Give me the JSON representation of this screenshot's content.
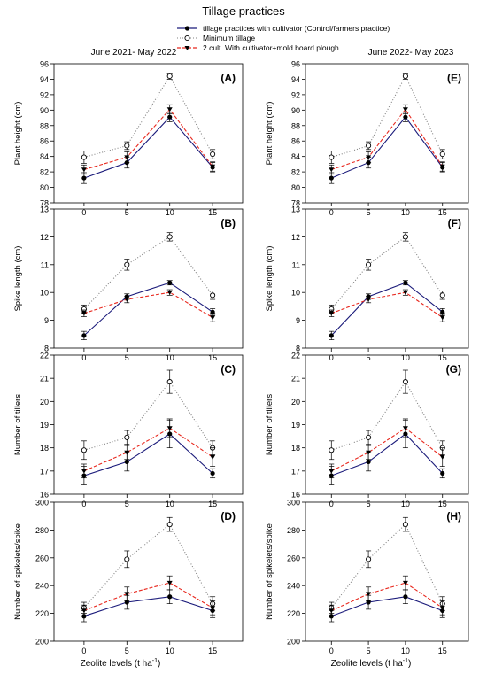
{
  "figure": {
    "title": "Tillage practices",
    "period_left": "June 2021- May 2022",
    "period_right": "June 2022- May 2023",
    "xlabel": "Zeolite levels (t ha",
    "xlabel_sup": "-1",
    "xlabel_end": ")"
  },
  "legend": {
    "items": [
      {
        "label": "tillage practices with  cultivator (Control/farmers practice)",
        "color": "#1a1a7a",
        "marker": "filled-circle",
        "dash": "solid"
      },
      {
        "label": "Minimum tillage",
        "color": "#808080",
        "marker": "open-circle",
        "dash": "dotted"
      },
      {
        "label": "2 cult. With cultivator+mold board plough",
        "color": "#e8281e",
        "marker": "filled-triangle-down",
        "dash": "dashed"
      }
    ]
  },
  "chart_data": [
    {
      "type": "line",
      "panel": "(A)",
      "period": "June 2021- May 2022",
      "ylabel": "Plant height (cm)",
      "xlabel": "Zeolite levels (t ha-1)",
      "x": [
        0,
        5,
        10,
        15
      ],
      "xticks": [
        0,
        5,
        10,
        15
      ],
      "xlim": [
        -3.5,
        18.5
      ],
      "ylim": [
        78,
        96
      ],
      "yticks": [
        78,
        80,
        82,
        84,
        86,
        88,
        90,
        92,
        94,
        96
      ],
      "series": [
        {
          "name": "tillage practices with  cultivator (Control/farmers practice)",
          "values": [
            81.2,
            83.2,
            89.1,
            82.6
          ],
          "errors": [
            0.7,
            0.7,
            0.6,
            0.6
          ]
        },
        {
          "name": "Minimum tillage",
          "values": [
            83.9,
            85.4,
            94.4,
            84.3
          ],
          "errors": [
            0.8,
            0.5,
            0.4,
            0.6
          ]
        },
        {
          "name": "2 cult. With cultivator+mold board plough",
          "values": [
            82.3,
            83.9,
            90.1,
            82.7
          ],
          "errors": [
            0.6,
            0.7,
            0.6,
            0.6
          ]
        }
      ]
    },
    {
      "type": "line",
      "panel": "(E)",
      "period": "June 2022- May 2023",
      "ylabel": "Plant height (cm)",
      "xlabel": "Zeolite levels (t ha-1)",
      "x": [
        0,
        5,
        10,
        15
      ],
      "xticks": [
        0,
        5,
        10,
        15
      ],
      "xlim": [
        -3.5,
        18.5
      ],
      "ylim": [
        78,
        96
      ],
      "yticks": [
        78,
        80,
        82,
        84,
        86,
        88,
        90,
        92,
        94,
        96
      ],
      "series": [
        {
          "name": "tillage practices with  cultivator (Control/farmers practice)",
          "values": [
            81.2,
            83.2,
            89.1,
            82.6
          ],
          "errors": [
            0.7,
            0.7,
            0.6,
            0.6
          ]
        },
        {
          "name": "Minimum tillage",
          "values": [
            83.9,
            85.4,
            94.4,
            84.3
          ],
          "errors": [
            0.8,
            0.5,
            0.4,
            0.6
          ]
        },
        {
          "name": "2 cult. With cultivator+mold board plough",
          "values": [
            82.3,
            83.9,
            90.1,
            82.7
          ],
          "errors": [
            0.6,
            0.7,
            0.6,
            0.6
          ]
        }
      ]
    },
    {
      "type": "line",
      "panel": "(B)",
      "period": "June 2021- May 2022",
      "ylabel": "Spike length (cm)",
      "xlabel": "Zeolite levels (t ha-1)",
      "x": [
        0,
        5,
        10,
        15
      ],
      "xticks": [
        0,
        5,
        10,
        15
      ],
      "xlim": [
        -3.5,
        18.5
      ],
      "ylim": [
        8,
        13
      ],
      "yticks": [
        8,
        9,
        10,
        11,
        12,
        13
      ],
      "series": [
        {
          "name": "tillage practices with  cultivator (Control/farmers practice)",
          "values": [
            8.45,
            9.85,
            10.35,
            9.3
          ],
          "errors": [
            0.15,
            0.1,
            0.08,
            0.12
          ]
        },
        {
          "name": "Minimum tillage",
          "values": [
            9.4,
            11.0,
            12.0,
            9.9
          ],
          "errors": [
            0.15,
            0.2,
            0.15,
            0.15
          ]
        },
        {
          "name": "2 cult. With cultivator+mold board plough",
          "values": [
            9.25,
            9.75,
            10.0,
            9.1
          ],
          "errors": [
            0.12,
            0.12,
            0.1,
            0.15
          ]
        }
      ]
    },
    {
      "type": "line",
      "panel": "(F)",
      "period": "June 2022- May 2023",
      "ylabel": "Spike length (cm)",
      "xlabel": "Zeolite levels (t ha-1)",
      "x": [
        0,
        5,
        10,
        15
      ],
      "xticks": [
        0,
        5,
        10,
        15
      ],
      "xlim": [
        -3.5,
        18.5
      ],
      "ylim": [
        8,
        13
      ],
      "yticks": [
        8,
        9,
        10,
        11,
        12,
        13
      ],
      "series": [
        {
          "name": "tillage practices with  cultivator (Control/farmers practice)",
          "values": [
            8.45,
            9.85,
            10.35,
            9.3
          ],
          "errors": [
            0.15,
            0.1,
            0.08,
            0.12
          ]
        },
        {
          "name": "Minimum tillage",
          "values": [
            9.4,
            11.0,
            12.0,
            9.9
          ],
          "errors": [
            0.15,
            0.2,
            0.15,
            0.15
          ]
        },
        {
          "name": "2 cult. With cultivator+mold board plough",
          "values": [
            9.25,
            9.75,
            10.0,
            9.1
          ],
          "errors": [
            0.12,
            0.12,
            0.1,
            0.15
          ]
        }
      ]
    },
    {
      "type": "line",
      "panel": "(C)",
      "period": "June 2021- May 2022",
      "ylabel": "Number of tillers",
      "xlabel": "Zeolite levels (t ha-1)",
      "x": [
        0,
        5,
        10,
        15
      ],
      "xticks": [
        0,
        5,
        10,
        15
      ],
      "xlim": [
        -3.5,
        18.5
      ],
      "ylim": [
        16,
        22
      ],
      "yticks": [
        16,
        17,
        18,
        19,
        20,
        21,
        22
      ],
      "series": [
        {
          "name": "tillage practices with  cultivator (Control/farmers practice)",
          "values": [
            16.8,
            17.4,
            18.6,
            16.9
          ],
          "errors": [
            0.4,
            0.4,
            0.6,
            0.2
          ]
        },
        {
          "name": "Minimum tillage",
          "values": [
            17.9,
            18.45,
            20.85,
            18.0
          ],
          "errors": [
            0.4,
            0.3,
            0.5,
            0.3
          ]
        },
        {
          "name": "2 cult. With cultivator+mold board plough",
          "values": [
            17.0,
            17.8,
            18.85,
            17.6
          ],
          "errors": [
            0.3,
            0.3,
            0.4,
            0.4
          ]
        }
      ]
    },
    {
      "type": "line",
      "panel": "(G)",
      "period": "June 2022- May 2023",
      "ylabel": "Number of tillers",
      "xlabel": "Zeolite levels (t ha-1)",
      "x": [
        0,
        5,
        10,
        15
      ],
      "xticks": [
        0,
        5,
        10,
        15
      ],
      "xlim": [
        -3.5,
        18.5
      ],
      "ylim": [
        16,
        22
      ],
      "yticks": [
        16,
        17,
        18,
        19,
        20,
        21,
        22
      ],
      "series": [
        {
          "name": "tillage practices with  cultivator (Control/farmers practice)",
          "values": [
            16.8,
            17.4,
            18.6,
            16.9
          ],
          "errors": [
            0.4,
            0.4,
            0.6,
            0.2
          ]
        },
        {
          "name": "Minimum tillage",
          "values": [
            17.9,
            18.45,
            20.85,
            18.0
          ],
          "errors": [
            0.4,
            0.3,
            0.5,
            0.3
          ]
        },
        {
          "name": "2 cult. With cultivator+mold board plough",
          "values": [
            17.0,
            17.8,
            18.85,
            17.6
          ],
          "errors": [
            0.3,
            0.3,
            0.4,
            0.4
          ]
        }
      ]
    },
    {
      "type": "line",
      "panel": "(D)",
      "period": "June 2021- May 2022",
      "ylabel": "Number of spikelets/spike",
      "xlabel": "Zeolite levels (t ha-1)",
      "x": [
        0,
        5,
        10,
        15
      ],
      "xticks": [
        0,
        5,
        10,
        15
      ],
      "xlim": [
        -3.5,
        18.5
      ],
      "ylim": [
        200,
        300
      ],
      "yticks": [
        200,
        220,
        240,
        260,
        280,
        300
      ],
      "series": [
        {
          "name": "tillage practices with  cultivator (Control/farmers practice)",
          "values": [
            218,
            228,
            232,
            222
          ],
          "errors": [
            4,
            5,
            5,
            5
          ]
        },
        {
          "name": "Minimum tillage",
          "values": [
            224,
            259,
            284,
            227
          ],
          "errors": [
            4,
            6,
            5,
            5
          ]
        },
        {
          "name": "2 cult. With cultivator+mold board plough",
          "values": [
            222,
            234,
            242,
            224
          ],
          "errors": [
            4,
            5,
            5,
            5
          ]
        }
      ]
    },
    {
      "type": "line",
      "panel": "(H)",
      "period": "June 2022- May 2023",
      "ylabel": "Number of spikelets/spike",
      "xlabel": "Zeolite levels (t ha-1)",
      "x": [
        0,
        5,
        10,
        15
      ],
      "xticks": [
        0,
        5,
        10,
        15
      ],
      "xlim": [
        -3.5,
        18.5
      ],
      "ylim": [
        200,
        300
      ],
      "yticks": [
        200,
        220,
        240,
        260,
        280,
        300
      ],
      "series": [
        {
          "name": "tillage practices with  cultivator (Control/farmers practice)",
          "values": [
            218,
            228,
            232,
            222
          ],
          "errors": [
            4,
            5,
            5,
            5
          ]
        },
        {
          "name": "Minimum tillage",
          "values": [
            224,
            259,
            284,
            227
          ],
          "errors": [
            4,
            6,
            5,
            5
          ]
        },
        {
          "name": "2 cult. With cultivator+mold board plough",
          "values": [
            222,
            234,
            242,
            224
          ],
          "errors": [
            4,
            5,
            5,
            5
          ]
        }
      ]
    }
  ]
}
